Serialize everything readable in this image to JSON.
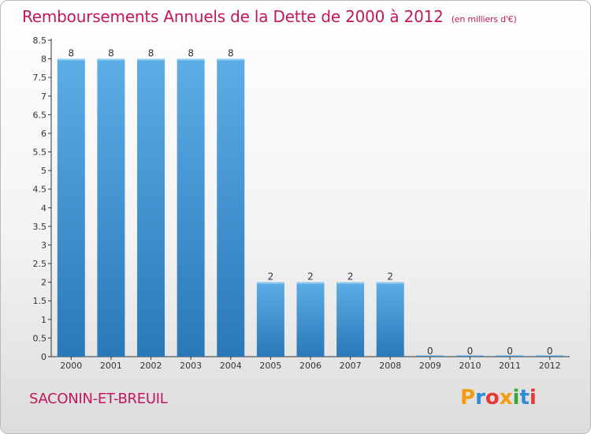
{
  "header": {
    "title": "Remboursements Annuels de la Dette de 2000 à 2012",
    "subtitle": "(en milliers d'€)"
  },
  "footer": {
    "commune": "SACONIN-ET-BREUIL",
    "logo_text": "Proxiti",
    "logo_letters": [
      {
        "ch": "P",
        "color": "#f39c12"
      },
      {
        "ch": "r",
        "color": "#2e8bd6"
      },
      {
        "ch": "o",
        "color": "#e53935"
      },
      {
        "ch": "x",
        "color": "#f39c12"
      },
      {
        "ch": "i",
        "color": "#3aa63a"
      },
      {
        "ch": "t",
        "color": "#2e8bd6"
      },
      {
        "ch": "i",
        "color": "#e53935"
      }
    ]
  },
  "colors": {
    "title": "#c2185b",
    "bar_light": "#5dade6",
    "bar_dark": "#2a78b8",
    "axis": "#333333"
  },
  "chart_data": {
    "type": "bar",
    "title": "Remboursements Annuels de la Dette de 2000 à 2012",
    "subtitle": "(en milliers d'€)",
    "categories": [
      "2000",
      "2001",
      "2002",
      "2003",
      "2004",
      "2005",
      "2006",
      "2007",
      "2008",
      "2009",
      "2010",
      "2011",
      "2012"
    ],
    "values": [
      8,
      8,
      8,
      8,
      8,
      2,
      2,
      2,
      2,
      0,
      0,
      0,
      0
    ],
    "data_labels": [
      "8",
      "8",
      "8",
      "8",
      "8",
      "2",
      "2",
      "2",
      "2",
      "0",
      "0",
      "0",
      "0"
    ],
    "xlabel": "",
    "ylabel": "",
    "ylim": [
      0,
      8.5
    ],
    "yticks": [
      0,
      0.5,
      1,
      1.5,
      2,
      2.5,
      3,
      3.5,
      4,
      4.5,
      5,
      5.5,
      6,
      6.5,
      7,
      7.5,
      8,
      8.5
    ],
    "ytick_labels": [
      "0",
      "0.5",
      "1",
      "1.5",
      "2",
      "2.5",
      "3",
      "3.5",
      "4",
      "4.5",
      "5",
      "5.5",
      "6",
      "6.5",
      "7",
      "7.5",
      "8",
      "8.5"
    ],
    "grid": false,
    "legend": "none"
  }
}
